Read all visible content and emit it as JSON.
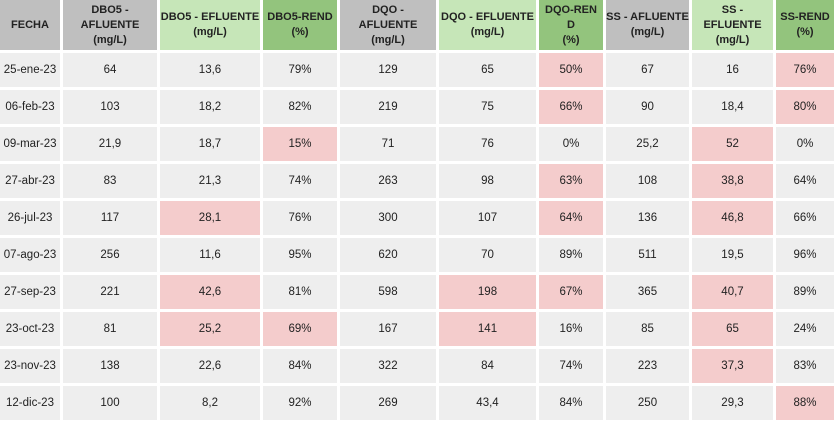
{
  "colors": {
    "header_gray": "#bfbfbf",
    "header_light_green": "#c6e6b8",
    "header_green": "#93c47d",
    "cell_gray": "#eeeeee",
    "highlight_red": "#f4cccc"
  },
  "headers": [
    [
      "FECHA"
    ],
    [
      "DBO5 -",
      "AFLUENTE",
      "(mg/L)"
    ],
    [
      "DBO5 - EFLUENTE",
      "(mg/L)"
    ],
    [
      "DBO5-REND",
      "(%)"
    ],
    [
      "DQO -",
      "AFLUENTE",
      "(mg/L)"
    ],
    [
      "DQO - EFLUENTE",
      "(mg/L)"
    ],
    [
      "DQO-REN",
      "D",
      "(%)"
    ],
    [
      "SS - AFLUENTE",
      "(mg/L)"
    ],
    [
      "SS -",
      "EFLUENTE",
      "(mg/L)"
    ],
    [
      "SS-REND",
      "(%)"
    ]
  ],
  "rows": [
    [
      "25-ene-23",
      "64",
      "13,6",
      "79%",
      "129",
      "65",
      "50%",
      "67",
      "16",
      "76%"
    ],
    [
      "06-feb-23",
      "103",
      "18,2",
      "82%",
      "219",
      "75",
      "66%",
      "90",
      "18,4",
      "80%"
    ],
    [
      "09-mar-23",
      "21,9",
      "18,7",
      "15%",
      "71",
      "76",
      "0%",
      "25,2",
      "52",
      "0%"
    ],
    [
      "27-abr-23",
      "83",
      "21,3",
      "74%",
      "263",
      "98",
      "63%",
      "108",
      "38,8",
      "64%"
    ],
    [
      "26-jul-23",
      "117",
      "28,1",
      "76%",
      "300",
      "107",
      "64%",
      "136",
      "46,8",
      "66%"
    ],
    [
      "07-ago-23",
      "256",
      "11,6",
      "95%",
      "620",
      "70",
      "89%",
      "511",
      "19,5",
      "96%"
    ],
    [
      "27-sep-23",
      "221",
      "42,6",
      "81%",
      "598",
      "198",
      "67%",
      "365",
      "40,7",
      "89%"
    ],
    [
      "23-oct-23",
      "81",
      "25,2",
      "69%",
      "167",
      "141",
      "16%",
      "85",
      "65",
      "24%"
    ],
    [
      "23-nov-23",
      "138",
      "22,6",
      "84%",
      "322",
      "84",
      "74%",
      "223",
      "37,3",
      "83%"
    ],
    [
      "12-dic-23",
      "100",
      "8,2",
      "92%",
      "269",
      "43,4",
      "84%",
      "250",
      "29,3",
      "88%"
    ]
  ],
  "highlighted": [
    [
      0,
      6
    ],
    [
      0,
      9
    ],
    [
      1,
      6
    ],
    [
      1,
      9
    ],
    [
      2,
      3
    ],
    [
      2,
      8
    ],
    [
      3,
      6
    ],
    [
      3,
      8
    ],
    [
      4,
      2
    ],
    [
      4,
      6
    ],
    [
      4,
      8
    ],
    [
      6,
      2
    ],
    [
      6,
      5
    ],
    [
      6,
      6
    ],
    [
      6,
      8
    ],
    [
      7,
      2
    ],
    [
      7,
      3
    ],
    [
      7,
      5
    ],
    [
      7,
      8
    ],
    [
      8,
      8
    ],
    [
      9,
      9
    ]
  ]
}
